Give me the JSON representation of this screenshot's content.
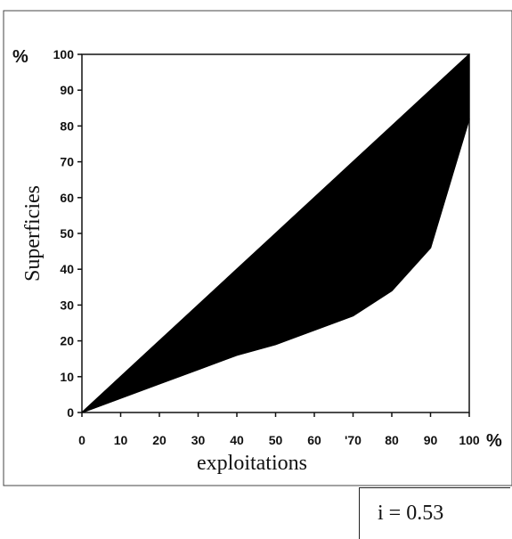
{
  "chart_data": {
    "type": "area",
    "description_kind": "lorenz-curve",
    "xlabel": "exploitations",
    "ylabel": "Superficies",
    "x_unit": "%",
    "y_unit": "%",
    "xlim": [
      0,
      100
    ],
    "ylim": [
      0,
      100
    ],
    "x_ticks": [
      "0",
      "10",
      "20",
      "30",
      "40",
      "50",
      "60",
      "'70",
      "80",
      "90",
      "100"
    ],
    "y_ticks": [
      "0",
      "10",
      "20",
      "30",
      "40",
      "50",
      "60",
      "70",
      "80",
      "90",
      "100"
    ],
    "series": [
      {
        "name": "",
        "x": [
          0,
          10,
          20,
          30,
          40,
          50,
          60,
          70,
          80,
          90,
          100
        ],
        "y": [
          0,
          10,
          20,
          30,
          40,
          50,
          60,
          70,
          80,
          90,
          100
        ]
      },
      {
        "name": "",
        "x": [
          0,
          10,
          20,
          30,
          40,
          50,
          60,
          70,
          80,
          90,
          100
        ],
        "y": [
          0,
          4,
          8,
          12,
          16,
          19,
          23,
          27,
          34,
          46,
          82
        ]
      }
    ],
    "fill_color": "#000000",
    "grid": false,
    "legend": "none"
  },
  "annotation": {
    "index_label": "i = 0.53"
  }
}
